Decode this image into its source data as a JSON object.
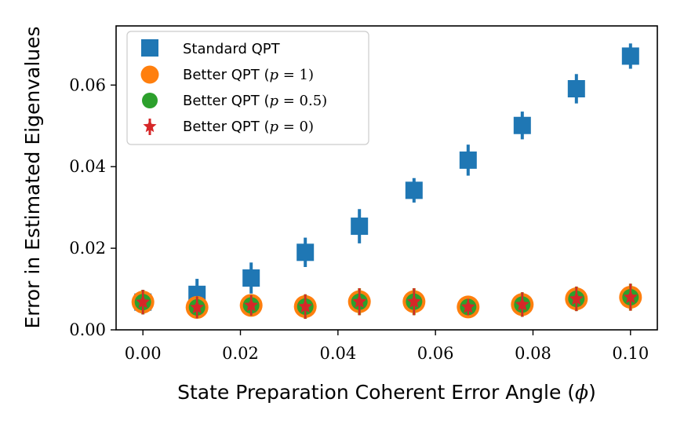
{
  "chart_data": {
    "type": "scatter",
    "title": "",
    "xlabel": "State Preparation Coherent Error Angle (ϕ)",
    "ylabel": "Error in Estimated Eigenvalues",
    "xlim": [
      -0.0055,
      0.1055
    ],
    "ylim": [
      0.0,
      0.0745
    ],
    "x_ticks": [
      0.0,
      0.02,
      0.04,
      0.06,
      0.08,
      0.1
    ],
    "x_tick_labels": [
      "0.00",
      "0.02",
      "0.04",
      "0.06",
      "0.08",
      "0.10"
    ],
    "y_ticks": [
      0.0,
      0.02,
      0.04,
      0.06
    ],
    "y_tick_labels": [
      "0.00",
      "0.02",
      "0.04",
      "0.06"
    ],
    "grid": false,
    "legend_position": "top-left",
    "x": [
      0.0,
      0.0111,
      0.0222,
      0.0333,
      0.0444,
      0.0556,
      0.0667,
      0.0778,
      0.0889,
      0.1
    ],
    "series": [
      {
        "name": "Standard QPT",
        "marker": "square",
        "color": "#1f77b4",
        "values": [
          0.0068,
          0.0087,
          0.0127,
          0.019,
          0.0254,
          0.0342,
          0.0416,
          0.0501,
          0.0591,
          0.0671
        ],
        "errors": [
          0.003,
          0.0038,
          0.0038,
          0.0036,
          0.0042,
          0.003,
          0.0038,
          0.0034,
          0.0036,
          0.0031
        ]
      },
      {
        "name": "Better QPT (p = 1)",
        "marker": "circle",
        "color": "#ff7f0e",
        "values": [
          0.0068,
          0.0055,
          0.006,
          0.0057,
          0.0069,
          0.0069,
          0.0056,
          0.0062,
          0.0076,
          0.008
        ],
        "errors": [
          0.003,
          0.0027,
          0.0025,
          0.003,
          0.0033,
          0.0033,
          0.002,
          0.003,
          0.003,
          0.0033
        ]
      },
      {
        "name": "Better QPT (p = 0.5)",
        "marker": "circle",
        "color": "#2ca02c",
        "values": [
          0.0068,
          0.0055,
          0.006,
          0.0057,
          0.0069,
          0.0069,
          0.0056,
          0.0062,
          0.0076,
          0.008
        ],
        "errors": [
          0.003,
          0.0027,
          0.0025,
          0.003,
          0.0033,
          0.0033,
          0.002,
          0.003,
          0.003,
          0.0033
        ]
      },
      {
        "name": "Better QPT (p = 0)",
        "marker": "star",
        "color": "#d62728",
        "values": [
          0.0068,
          0.0055,
          0.006,
          0.0057,
          0.0069,
          0.0069,
          0.0056,
          0.0062,
          0.0076,
          0.008
        ],
        "errors": [
          0.003,
          0.0027,
          0.0025,
          0.003,
          0.0033,
          0.0033,
          0.002,
          0.003,
          0.003,
          0.0033
        ]
      }
    ],
    "legend_labels": {
      "standard": "Standard QPT",
      "p1_prefix": "Better QPT (",
      "p1_var": "p",
      "p1_value": " = 1)",
      "p05_prefix": "Better QPT (",
      "p05_var": "p",
      "p05_value": " = 0.5)",
      "p0_prefix": "Better QPT (",
      "p0_var": "p",
      "p0_value": " = 0)"
    },
    "xlabel_parts": {
      "main": "State Preparation Coherent Error Angle (",
      "var": "ϕ",
      "close": ")"
    }
  }
}
